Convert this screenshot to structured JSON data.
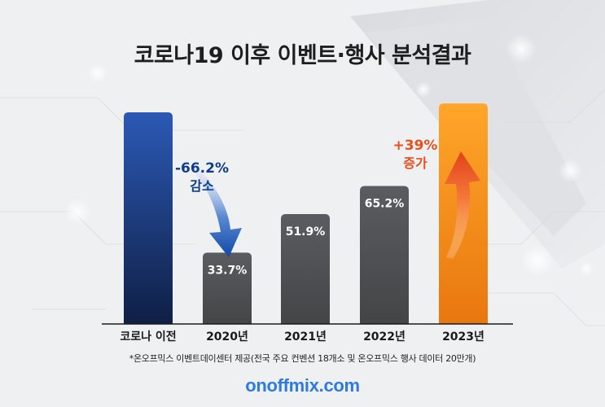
{
  "title": "코로나19 이후 이벤트·행사 분석결과",
  "chart_data": {
    "type": "bar",
    "title": "코로나19 이후 이벤트·행사 분석결과",
    "categories": [
      "코로나 이전",
      "2020년",
      "2021년",
      "2022년",
      "2023년"
    ],
    "values": [
      100,
      33.7,
      51.9,
      65.2,
      104.2
    ],
    "data_labels": [
      "",
      "33.7%",
      "51.9%",
      "65.2%",
      ""
    ],
    "ylim": [
      0,
      110
    ],
    "grid": false,
    "annotations": [
      {
        "text": "-66.2%",
        "subtext": "감소",
        "color": "#0e3d8c"
      },
      {
        "text": "+39%",
        "subtext": "증가",
        "color": "#e8501c"
      }
    ],
    "colors": {
      "baseline": "#2c59b5",
      "gray": "#555555",
      "highlight": "#f7941d",
      "decrease": "#0e3d8c",
      "increase": "#e8501c"
    }
  },
  "footnote": "*온오프믹스 이벤트데이센터 제공(전국 주요 컨벤션 18개소 및 온오프믹스 행사 데이터 20만개)",
  "brand": "onoffmix.com"
}
